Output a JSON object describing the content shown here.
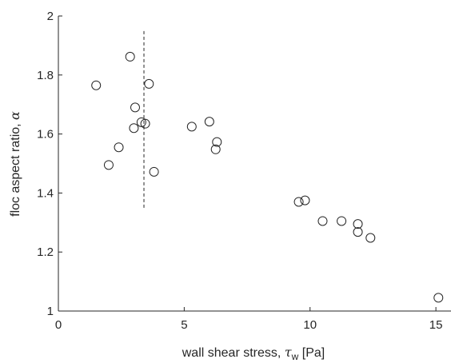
{
  "chart_data": {
    "type": "scatter",
    "xlabel_prefix": "wall shear stress, ",
    "xlabel_symbol": "τ",
    "xlabel_subscript": "w",
    "xlabel_suffix": " [Pa]",
    "ylabel_prefix": "floc aspect ratio, ",
    "ylabel_symbol": "α",
    "xlim": [
      0,
      15.6
    ],
    "ylim": [
      1,
      2
    ],
    "xticks": [
      0,
      5,
      10,
      15
    ],
    "yticks": [
      1,
      1.2,
      1.4,
      1.6,
      1.8,
      2
    ],
    "xtick_labels": [
      "0",
      "5",
      "10",
      "15"
    ],
    "ytick_labels": [
      "1",
      "1.2",
      "1.4",
      "1.6",
      "1.8",
      "2"
    ],
    "grid": false,
    "marker": "open-circle",
    "marker_color": "#262626",
    "reference_line": {
      "style": "dashed",
      "x": 3.4,
      "y_range": [
        1.35,
        1.95
      ]
    },
    "points": [
      {
        "x": 1.5,
        "y": 1.765
      },
      {
        "x": 2.0,
        "y": 1.495
      },
      {
        "x": 2.4,
        "y": 1.555
      },
      {
        "x": 2.85,
        "y": 1.862
      },
      {
        "x": 3.0,
        "y": 1.62
      },
      {
        "x": 3.05,
        "y": 1.69
      },
      {
        "x": 3.3,
        "y": 1.64
      },
      {
        "x": 3.45,
        "y": 1.635
      },
      {
        "x": 3.6,
        "y": 1.77
      },
      {
        "x": 3.8,
        "y": 1.472
      },
      {
        "x": 5.3,
        "y": 1.625
      },
      {
        "x": 6.0,
        "y": 1.642
      },
      {
        "x": 6.25,
        "y": 1.548
      },
      {
        "x": 6.3,
        "y": 1.573
      },
      {
        "x": 9.55,
        "y": 1.37
      },
      {
        "x": 9.8,
        "y": 1.375
      },
      {
        "x": 10.5,
        "y": 1.305
      },
      {
        "x": 11.25,
        "y": 1.305
      },
      {
        "x": 11.9,
        "y": 1.295
      },
      {
        "x": 11.9,
        "y": 1.268
      },
      {
        "x": 12.4,
        "y": 1.248
      },
      {
        "x": 15.1,
        "y": 1.045
      }
    ]
  }
}
